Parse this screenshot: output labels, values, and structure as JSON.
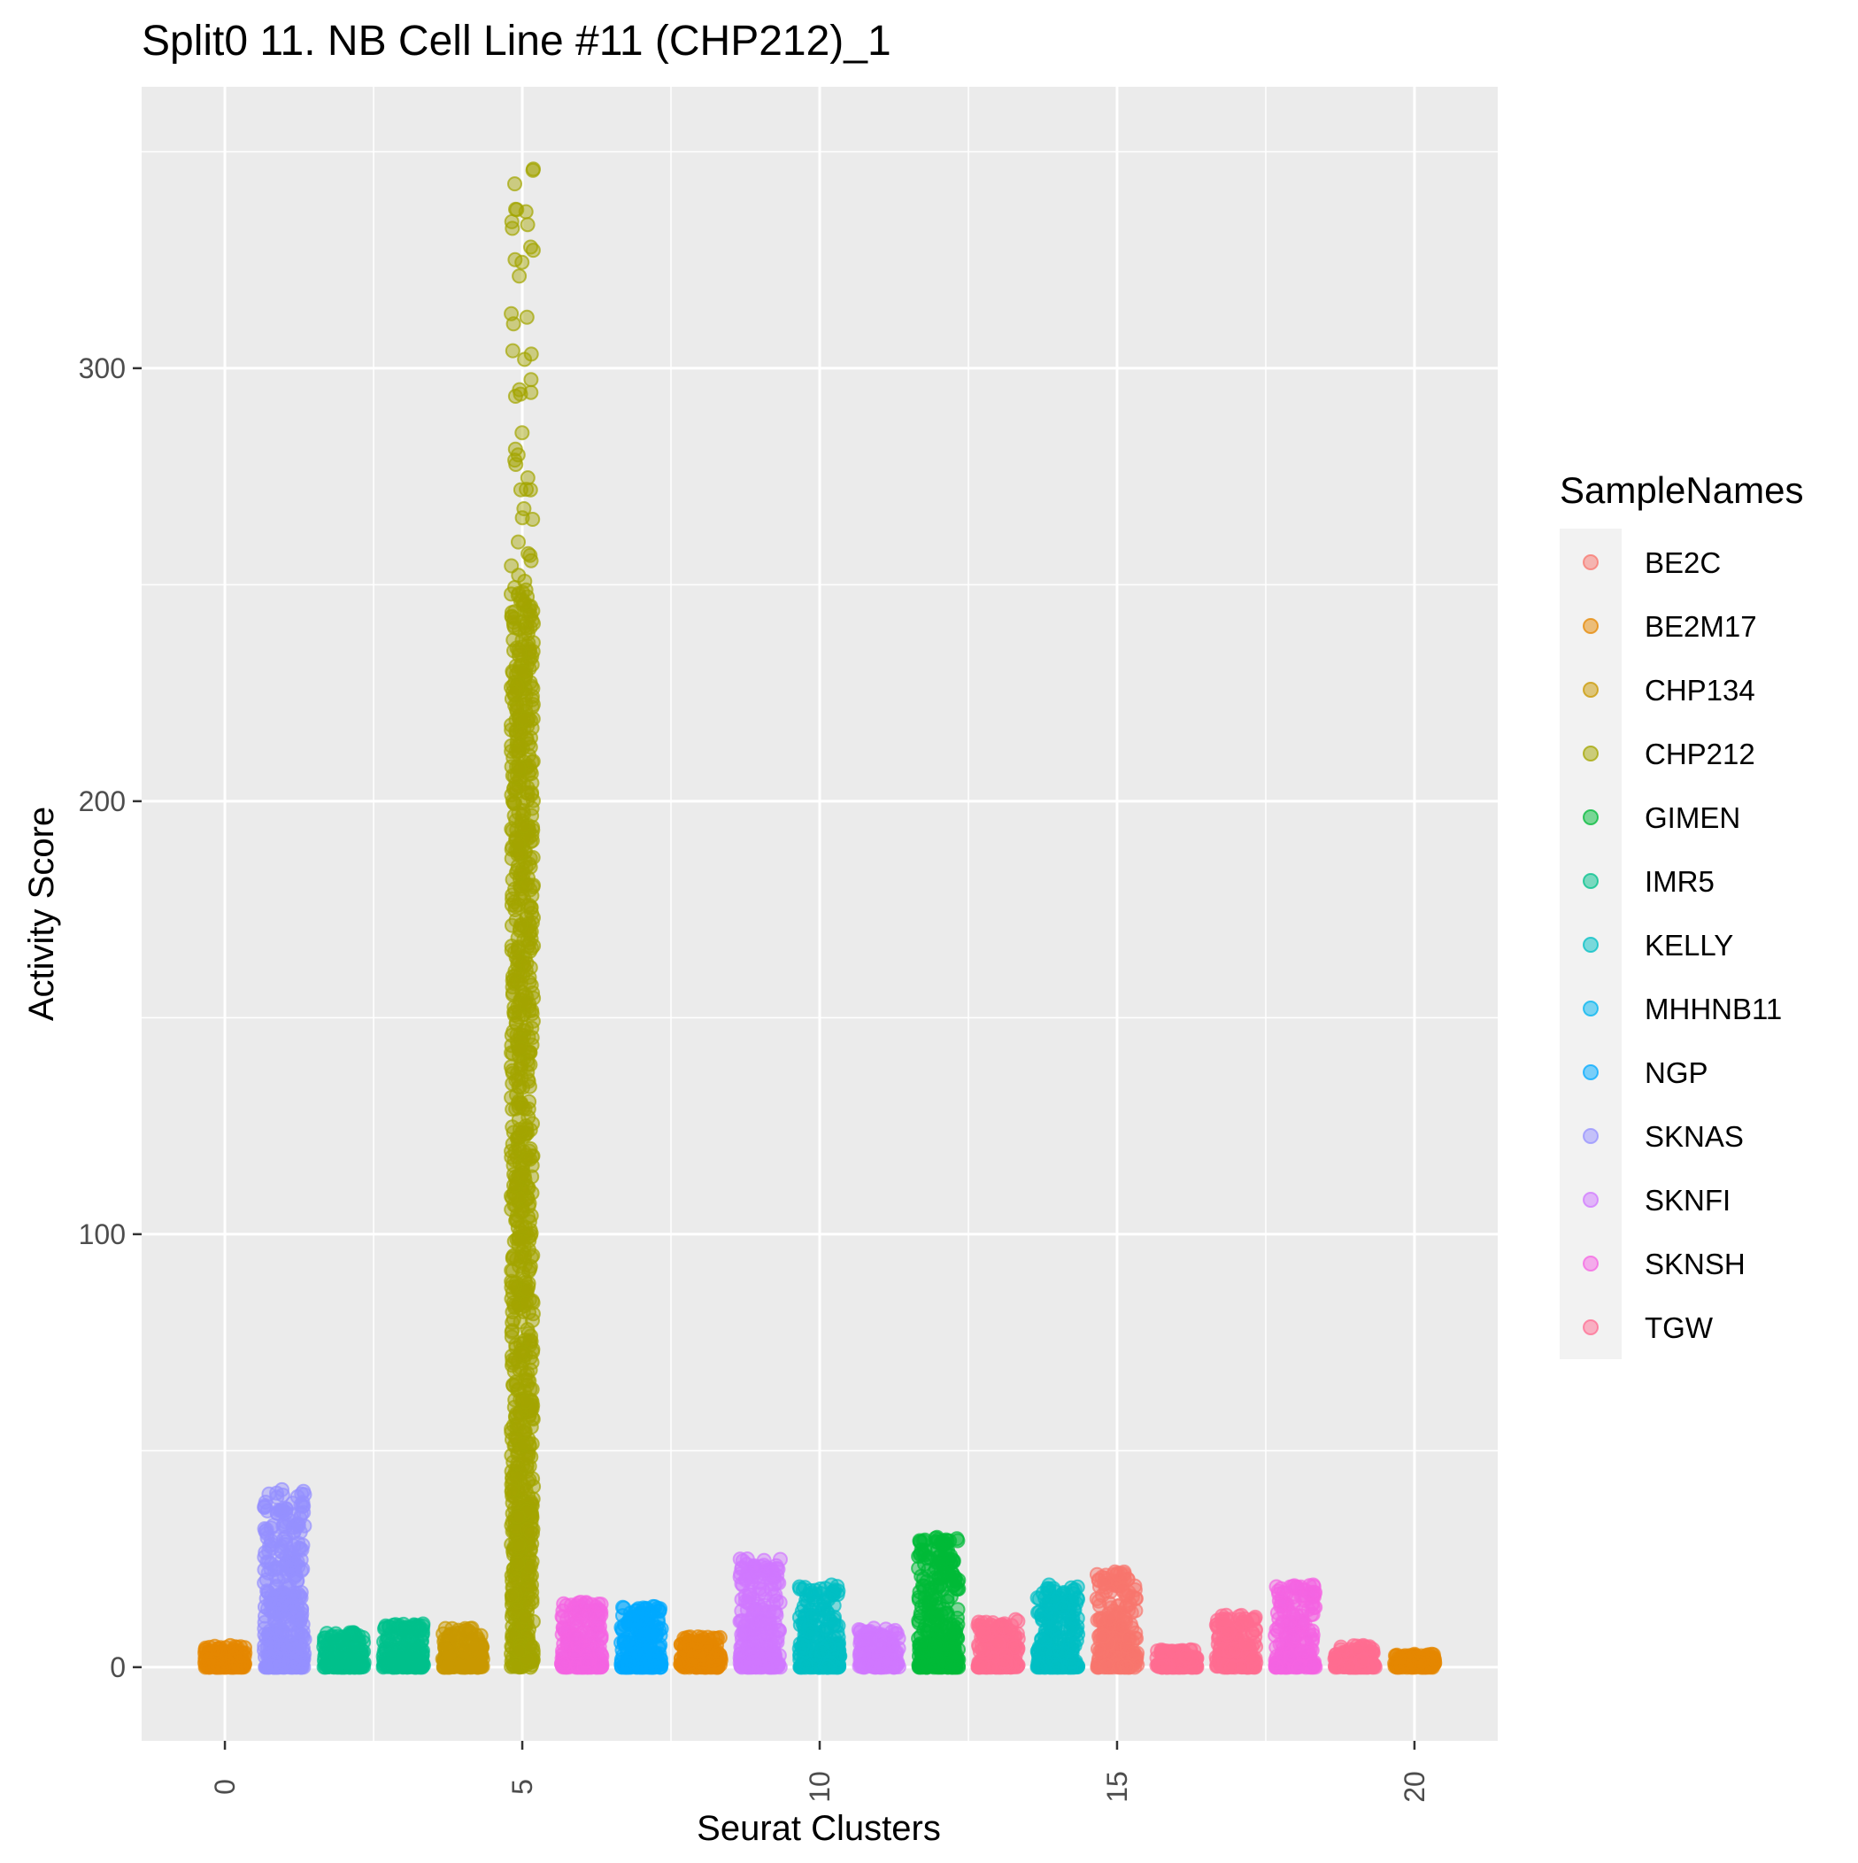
{
  "chart_data": {
    "type": "scatter",
    "title": "Split0 11. NB Cell Line #11 (CHP212)_1",
    "xlabel": "Seurat Clusters",
    "ylabel": "Activity Score",
    "xlim": [
      -1.4,
      21.4
    ],
    "ylim": [
      -17,
      365
    ],
    "x_ticks": [
      0,
      5,
      10,
      15,
      20
    ],
    "y_ticks": [
      0,
      100,
      200,
      300
    ],
    "x_tick_labels": [
      "0",
      "5",
      "10",
      "15",
      "20"
    ],
    "y_tick_labels": [
      "0",
      "100",
      "200",
      "300"
    ],
    "grid": true,
    "legend": {
      "title": "SampleNames",
      "position": "right",
      "entries": [
        {
          "name": "BE2C",
          "color": "#F8766D"
        },
        {
          "name": "BE2M17",
          "color": "#E58700"
        },
        {
          "name": "CHP134",
          "color": "#C99800"
        },
        {
          "name": "CHP212",
          "color": "#A3A500"
        },
        {
          "name": "GIMEN",
          "color": "#00BA38"
        },
        {
          "name": "IMR5",
          "color": "#00C08B"
        },
        {
          "name": "KELLY",
          "color": "#00BFC4"
        },
        {
          "name": "MHHNB11",
          "color": "#00B4F0"
        },
        {
          "name": "NGP",
          "color": "#00A9FF"
        },
        {
          "name": "SKNAS",
          "color": "#9590FF"
        },
        {
          "name": "SKNFI",
          "color": "#D078FF"
        },
        {
          "name": "SKNSH",
          "color": "#F564E3"
        },
        {
          "name": "TGW",
          "color": "#FF6C91"
        }
      ]
    },
    "clusters": [
      {
        "x": 0,
        "sample": "BE2M17",
        "median": 0.5,
        "max": 5
      },
      {
        "x": 1,
        "sample": "SKNAS",
        "median": 8,
        "max": 41
      },
      {
        "x": 2,
        "sample": "IMR5",
        "median": 1,
        "max": 8
      },
      {
        "x": 3,
        "sample": "IMR5",
        "median": 2,
        "max": 10
      },
      {
        "x": 4,
        "sample": "CHP134",
        "median": 1.5,
        "max": 9
      },
      {
        "x": 5,
        "sample": "CHP212",
        "median": 100,
        "max": 346
      },
      {
        "x": 6,
        "sample": "SKNSH",
        "median": 2.5,
        "max": 15
      },
      {
        "x": 7,
        "sample": "NGP",
        "median": 3,
        "max": 14
      },
      {
        "x": 8,
        "sample": "BE2M17",
        "median": 1.5,
        "max": 7
      },
      {
        "x": 9,
        "sample": "SKNFI",
        "median": 4,
        "max": 25
      },
      {
        "x": 10,
        "sample": "KELLY",
        "median": 3,
        "max": 19
      },
      {
        "x": 11,
        "sample": "SKNFI",
        "median": 1,
        "max": 9
      },
      {
        "x": 12,
        "sample": "GIMEN",
        "median": 5,
        "max": 30
      },
      {
        "x": 13,
        "sample": "TGW",
        "median": 2.5,
        "max": 11
      },
      {
        "x": 14,
        "sample": "KELLY",
        "median": 4,
        "max": 19
      },
      {
        "x": 15,
        "sample": "BE2C",
        "median": 6,
        "max": 22
      },
      {
        "x": 16,
        "sample": "TGW",
        "median": 0.3,
        "max": 4
      },
      {
        "x": 17,
        "sample": "TGW",
        "median": 1,
        "max": 12
      },
      {
        "x": 18,
        "sample": "SKNSH",
        "median": 2,
        "max": 19
      },
      {
        "x": 19,
        "sample": "TGW",
        "median": 0.2,
        "max": 5
      },
      {
        "x": 20,
        "sample": "BE2M17",
        "median": 0.2,
        "max": 3
      }
    ]
  }
}
